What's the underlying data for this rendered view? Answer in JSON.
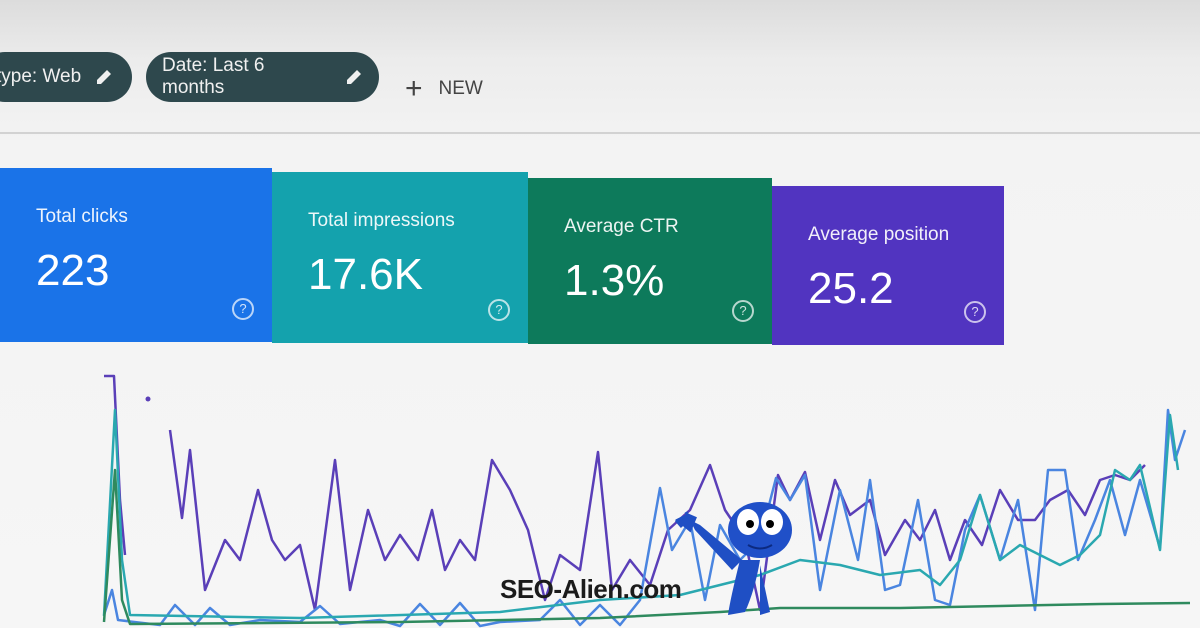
{
  "filters": {
    "chips": [
      "type: Web",
      "Date: Last 6 months"
    ],
    "new_button": "NEW"
  },
  "metrics": [
    {
      "label": "Total clicks",
      "value": "223"
    },
    {
      "label": "Total impressions",
      "value": "17.6K"
    },
    {
      "label": "Average CTR",
      "value": "1.3%"
    },
    {
      "label": "Average position",
      "value": "25.2"
    }
  ],
  "watermark": "SEO-Alien.com"
}
